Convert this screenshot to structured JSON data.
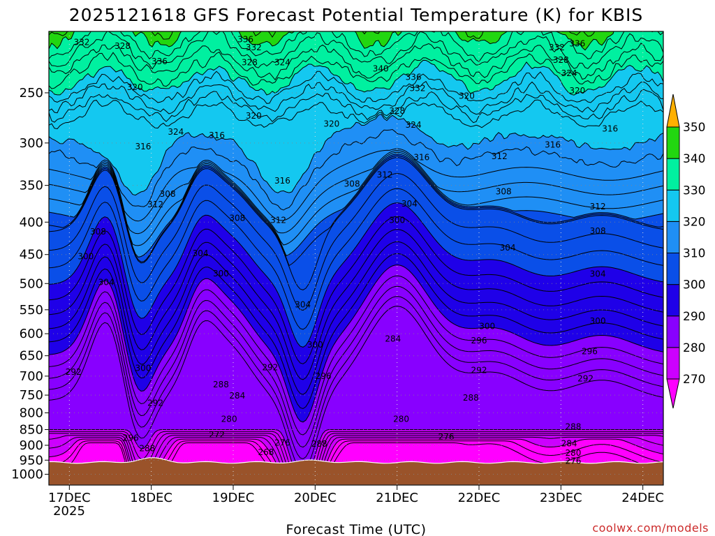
{
  "chart_data": {
    "type": "heatmap",
    "title": "2025121618 GFS Forecast Potential Temperature (K) for KBIS",
    "xlabel": "Forecast Time (UTC)",
    "ylabel": "",
    "credit": "coolwx.com/models",
    "y_axis": {
      "scale": "log-pressure",
      "ylim": [
        1040,
        200
      ],
      "ticks": [
        "250",
        "300",
        "350",
        "400",
        "450",
        "500",
        "550",
        "600",
        "650",
        "700",
        "750",
        "800",
        "850",
        "900",
        "950",
        "1000"
      ],
      "tick_values": [
        250,
        300,
        350,
        400,
        450,
        500,
        550,
        600,
        650,
        700,
        750,
        800,
        850,
        900,
        950,
        1000
      ]
    },
    "x_axis": {
      "range_days": [
        -0.25,
        7.25
      ],
      "ticks": [
        "17DEC",
        "18DEC",
        "19DEC",
        "20DEC",
        "21DEC",
        "22DEC",
        "23DEC",
        "24DEC"
      ],
      "tick_values": [
        0,
        1,
        2,
        3,
        4,
        5,
        6,
        7
      ],
      "sublabel": "2025"
    },
    "colorbar": {
      "levels": [
        "270",
        "280",
        "290",
        "300",
        "310",
        "320",
        "330",
        "340",
        "350"
      ],
      "level_values": [
        270,
        280,
        290,
        300,
        310,
        320,
        330,
        340,
        350
      ],
      "colors": [
        "#ff00ff",
        "#cc00ff",
        "#8800ff",
        "#1f00e8",
        "#0a4fe8",
        "#1f8ff5",
        "#14c8f0",
        "#00f0a0",
        "#22d610",
        "#ffff1a",
        "#ffb000"
      ]
    },
    "series": [
      {
        "name": "Potential Temperature (K)",
        "values": [
          270,
          280,
          290,
          300,
          310,
          320,
          330,
          340,
          350
        ]
      }
    ],
    "contour_labels": [
      {
        "text": "332",
        "day": 0.15,
        "p": 208
      },
      {
        "text": "328",
        "day": 0.65,
        "p": 211
      },
      {
        "text": "336",
        "day": 1.1,
        "p": 223
      },
      {
        "text": "320",
        "day": 0.8,
        "p": 245
      },
      {
        "text": "316",
        "day": 0.9,
        "p": 304
      },
      {
        "text": "324",
        "day": 1.3,
        "p": 288
      },
      {
        "text": "312",
        "day": 1.05,
        "p": 375
      },
      {
        "text": "308",
        "day": 1.2,
        "p": 361
      },
      {
        "text": "308",
        "day": 0.35,
        "p": 414
      },
      {
        "text": "300",
        "day": 0.2,
        "p": 453
      },
      {
        "text": "304",
        "day": 0.45,
        "p": 498
      },
      {
        "text": "304",
        "day": 1.6,
        "p": 448
      },
      {
        "text": "300",
        "day": 1.85,
        "p": 482
      },
      {
        "text": "300",
        "day": 0.9,
        "p": 680
      },
      {
        "text": "292",
        "day": 0.05,
        "p": 690
      },
      {
        "text": "292",
        "day": 1.05,
        "p": 772
      },
      {
        "text": "296",
        "day": 0.75,
        "p": 876
      },
      {
        "text": "288",
        "day": 0.95,
        "p": 910
      },
      {
        "text": "336",
        "day": 2.15,
        "p": 206
      },
      {
        "text": "332",
        "day": 2.25,
        "p": 212
      },
      {
        "text": "328",
        "day": 2.2,
        "p": 224
      },
      {
        "text": "324",
        "day": 2.6,
        "p": 224
      },
      {
        "text": "320",
        "day": 2.25,
        "p": 272
      },
      {
        "text": "316",
        "day": 1.8,
        "p": 292
      },
      {
        "text": "316",
        "day": 2.6,
        "p": 344
      },
      {
        "text": "308",
        "day": 2.05,
        "p": 394
      },
      {
        "text": "312",
        "day": 2.55,
        "p": 397
      },
      {
        "text": "304",
        "day": 2.85,
        "p": 540
      },
      {
        "text": "292",
        "day": 2.45,
        "p": 678
      },
      {
        "text": "288",
        "day": 1.85,
        "p": 722
      },
      {
        "text": "284",
        "day": 2.05,
        "p": 752
      },
      {
        "text": "280",
        "day": 1.95,
        "p": 818
      },
      {
        "text": "272",
        "day": 1.8,
        "p": 866
      },
      {
        "text": "276",
        "day": 2.6,
        "p": 892
      },
      {
        "text": "268",
        "day": 2.4,
        "p": 923
      },
      {
        "text": "300",
        "day": 3.0,
        "p": 625
      },
      {
        "text": "296",
        "day": 3.1,
        "p": 700
      },
      {
        "text": "288",
        "day": 3.05,
        "p": 896
      },
      {
        "text": "320",
        "day": 3.2,
        "p": 280
      },
      {
        "text": "308",
        "day": 3.45,
        "p": 348
      },
      {
        "text": "340",
        "day": 3.8,
        "p": 229
      },
      {
        "text": "336",
        "day": 4.2,
        "p": 236
      },
      {
        "text": "332",
        "day": 4.25,
        "p": 246
      },
      {
        "text": "328",
        "day": 4.0,
        "p": 267
      },
      {
        "text": "324",
        "day": 4.2,
        "p": 281
      },
      {
        "text": "316",
        "day": 4.3,
        "p": 316
      },
      {
        "text": "312",
        "day": 3.85,
        "p": 337
      },
      {
        "text": "304",
        "day": 4.15,
        "p": 374
      },
      {
        "text": "300",
        "day": 4.0,
        "p": 397
      },
      {
        "text": "284",
        "day": 3.95,
        "p": 611
      },
      {
        "text": "280",
        "day": 4.05,
        "p": 818
      },
      {
        "text": "276",
        "day": 4.6,
        "p": 873
      },
      {
        "text": "320",
        "day": 4.85,
        "p": 253
      },
      {
        "text": "312",
        "day": 5.25,
        "p": 315
      },
      {
        "text": "308",
        "day": 5.3,
        "p": 358
      },
      {
        "text": "304",
        "day": 5.35,
        "p": 439
      },
      {
        "text": "300",
        "day": 5.1,
        "p": 584
      },
      {
        "text": "296",
        "day": 5.0,
        "p": 615
      },
      {
        "text": "292",
        "day": 5.0,
        "p": 685
      },
      {
        "text": "288",
        "day": 4.9,
        "p": 757
      },
      {
        "text": "316",
        "day": 6.6,
        "p": 285
      },
      {
        "text": "316",
        "day": 5.9,
        "p": 302
      },
      {
        "text": "332",
        "day": 5.95,
        "p": 212
      },
      {
        "text": "336",
        "day": 6.2,
        "p": 209
      },
      {
        "text": "328",
        "day": 6.0,
        "p": 222
      },
      {
        "text": "324",
        "day": 6.1,
        "p": 233
      },
      {
        "text": "320",
        "day": 6.2,
        "p": 248
      },
      {
        "text": "312",
        "day": 6.45,
        "p": 378
      },
      {
        "text": "308",
        "day": 6.45,
        "p": 413
      },
      {
        "text": "304",
        "day": 6.45,
        "p": 483
      },
      {
        "text": "300",
        "day": 6.45,
        "p": 573
      },
      {
        "text": "296",
        "day": 6.35,
        "p": 640
      },
      {
        "text": "292",
        "day": 6.3,
        "p": 706
      },
      {
        "text": "288",
        "day": 6.15,
        "p": 842
      },
      {
        "text": "284",
        "day": 6.1,
        "p": 894
      },
      {
        "text": "280",
        "day": 6.15,
        "p": 926
      },
      {
        "text": "276",
        "day": 6.15,
        "p": 953
      }
    ]
  }
}
